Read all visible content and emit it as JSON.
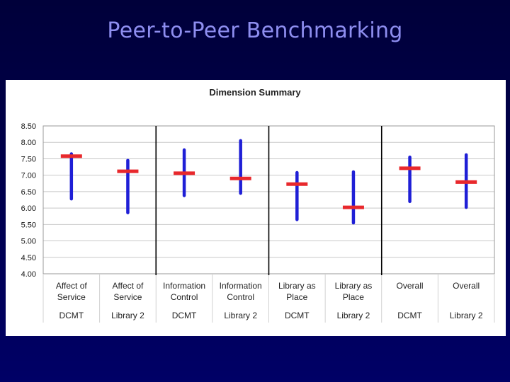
{
  "slide": {
    "title": "Peer-to-Peer Benchmarking"
  },
  "colors": {
    "range_bar": "#1f1fd6",
    "mean_marker": "#e8282c",
    "grid": "#c8c8c8",
    "divider": "#000000"
  },
  "chart_data": {
    "type": "range",
    "title": "Dimension Summary",
    "xlabel": "",
    "ylabel": "",
    "ylim": [
      4.0,
      8.5
    ],
    "y_ticks": [
      "8.50",
      "8.00",
      "7.50",
      "7.00",
      "6.50",
      "6.00",
      "5.50",
      "5.00",
      "4.50",
      "4.00"
    ],
    "grid": true,
    "groups": [
      "Affect of Service",
      "Information Control",
      "Library as Place",
      "Overall"
    ],
    "categories": [
      {
        "line1": "Affect of",
        "line2": "Service",
        "institution": "DCMT",
        "min": 6.28,
        "max": 7.65,
        "mean": 7.58
      },
      {
        "line1": "Affect of",
        "line2": "Service",
        "institution": "Library 2",
        "min": 5.86,
        "max": 7.45,
        "mean": 7.12
      },
      {
        "line1": "Information",
        "line2": "Control",
        "institution": "DCMT",
        "min": 6.38,
        "max": 7.77,
        "mean": 7.06
      },
      {
        "line1": "Information",
        "line2": "Control",
        "institution": "Library 2",
        "min": 6.45,
        "max": 8.05,
        "mean": 6.9
      },
      {
        "line1": "Library as",
        "line2": "Place",
        "institution": "DCMT",
        "min": 5.65,
        "max": 7.08,
        "mean": 6.73
      },
      {
        "line1": "Library as",
        "line2": "Place",
        "institution": "Library 2",
        "min": 5.55,
        "max": 7.1,
        "mean": 6.02
      },
      {
        "line1": "Overall",
        "line2": "",
        "institution": "DCMT",
        "min": 6.2,
        "max": 7.55,
        "mean": 7.21
      },
      {
        "line1": "Overall",
        "line2": "",
        "institution": "Library 2",
        "min": 6.02,
        "max": 7.62,
        "mean": 6.79
      }
    ]
  }
}
